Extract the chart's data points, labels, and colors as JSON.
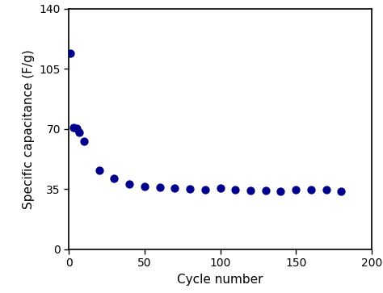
{
  "x": [
    1,
    3,
    5,
    7,
    10,
    20,
    30,
    40,
    50,
    60,
    70,
    80,
    90,
    100,
    110,
    120,
    130,
    140,
    150,
    160,
    170,
    180
  ],
  "y": [
    114,
    71,
    70.5,
    68,
    63,
    46,
    41,
    38,
    36.5,
    36,
    35.5,
    35,
    34.5,
    35.5,
    34.5,
    34,
    34,
    33.5,
    34.5,
    34.5,
    34.5,
    33.5
  ],
  "dot_color": "#00008B",
  "dot_size": 55,
  "xlabel": "Cycle number",
  "ylabel": "Specific capacitance (F/g)",
  "xlim": [
    0,
    200
  ],
  "ylim": [
    0,
    140
  ],
  "xticks": [
    0,
    50,
    100,
    150,
    200
  ],
  "yticks": [
    0,
    35,
    70,
    105,
    140
  ],
  "background_color": "#ffffff",
  "xlabel_fontsize": 11,
  "ylabel_fontsize": 11,
  "tick_fontsize": 10
}
